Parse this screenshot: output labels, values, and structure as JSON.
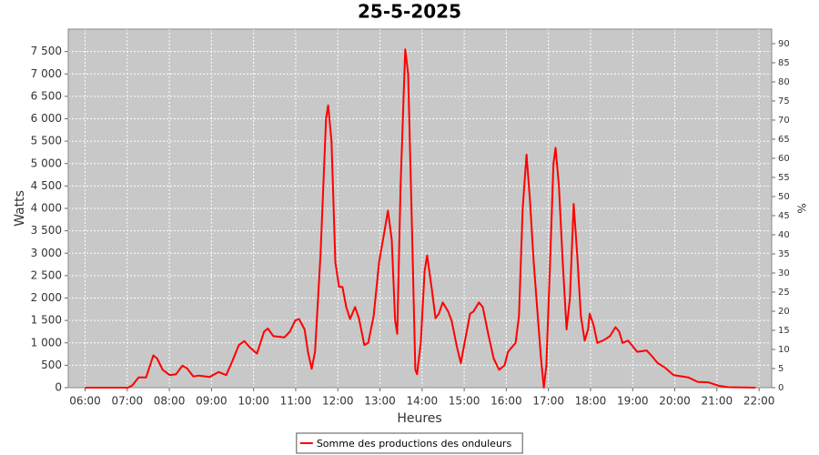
{
  "chart_data": {
    "type": "line",
    "title": "25-5-2025",
    "x_label": "Heures",
    "y_label": "Watts",
    "y2_label": "%",
    "x": [
      6.0,
      7.02,
      7.12,
      7.27,
      7.45,
      7.62,
      7.71,
      7.84,
      8.01,
      8.16,
      8.31,
      8.42,
      8.57,
      8.7,
      8.96,
      9.17,
      9.35,
      9.5,
      9.65,
      9.78,
      9.91,
      10.08,
      10.25,
      10.34,
      10.47,
      10.73,
      10.86,
      10.99,
      11.08,
      11.21,
      11.29,
      11.38,
      11.46,
      11.59,
      11.72,
      11.77,
      11.85,
      11.94,
      12.03,
      12.11,
      12.2,
      12.29,
      12.41,
      12.5,
      12.63,
      12.72,
      12.85,
      12.98,
      13.11,
      13.19,
      13.28,
      13.36,
      13.41,
      13.49,
      13.6,
      13.67,
      13.75,
      13.84,
      13.88,
      13.97,
      14.06,
      14.12,
      14.23,
      14.32,
      14.4,
      14.49,
      14.62,
      14.7,
      14.83,
      14.92,
      15.05,
      15.14,
      15.22,
      15.35,
      15.44,
      15.57,
      15.7,
      15.83,
      15.96,
      16.04,
      16.22,
      16.3,
      16.39,
      16.48,
      16.56,
      16.65,
      16.73,
      16.82,
      16.89,
      16.95,
      17.04,
      17.12,
      17.17,
      17.25,
      17.34,
      17.43,
      17.51,
      17.6,
      17.68,
      17.77,
      17.86,
      17.94,
      17.98,
      18.07,
      18.16,
      18.29,
      18.38,
      18.46,
      18.59,
      18.68,
      18.76,
      18.89,
      19.02,
      19.11,
      19.33,
      19.46,
      19.59,
      19.76,
      19.97,
      20.32,
      20.54,
      20.79,
      21.05,
      21.27,
      21.92
    ],
    "series": [
      {
        "name": "Somme des productions des onduleurs",
        "color": "#ff0000",
        "values": [
          0,
          0,
          50,
          230,
          230,
          720,
          650,
          400,
          280,
          300,
          490,
          430,
          250,
          270,
          240,
          350,
          280,
          600,
          950,
          1040,
          900,
          760,
          1250,
          1320,
          1150,
          1120,
          1250,
          1500,
          1530,
          1300,
          800,
          420,
          800,
          3000,
          6000,
          6300,
          5500,
          2800,
          2250,
          2250,
          1800,
          1530,
          1800,
          1550,
          950,
          1000,
          1600,
          2800,
          3500,
          3950,
          3300,
          1500,
          1200,
          4500,
          7550,
          7000,
          4000,
          400,
          300,
          1000,
          2600,
          2950,
          2200,
          1550,
          1650,
          1900,
          1700,
          1500,
          900,
          550,
          1200,
          1650,
          1700,
          1900,
          1800,
          1200,
          650,
          400,
          500,
          800,
          1000,
          1600,
          4000,
          5200,
          4200,
          2800,
          1800,
          700,
          0,
          500,
          2800,
          5000,
          5350,
          4500,
          2800,
          1300,
          2000,
          4100,
          3000,
          1600,
          1050,
          1300,
          1650,
          1400,
          1000,
          1050,
          1100,
          1150,
          1350,
          1250,
          1000,
          1050,
          900,
          800,
          830,
          700,
          550,
          450,
          280,
          230,
          130,
          120,
          40,
          10,
          0
        ]
      }
    ],
    "xlim": [
      5.6,
      22.3
    ],
    "xticks": [
      {
        "value": 6,
        "label": "06:00"
      },
      {
        "value": 7,
        "label": "07:00"
      },
      {
        "value": 8,
        "label": "08:00"
      },
      {
        "value": 9,
        "label": "09:00"
      },
      {
        "value": 10,
        "label": "10:00"
      },
      {
        "value": 11,
        "label": "11:00"
      },
      {
        "value": 12,
        "label": "12:00"
      },
      {
        "value": 13,
        "label": "13:00"
      },
      {
        "value": 14,
        "label": "14:00"
      },
      {
        "value": 15,
        "label": "15:00"
      },
      {
        "value": 16,
        "label": "16:00"
      },
      {
        "value": 17,
        "label": "17:00"
      },
      {
        "value": 18,
        "label": "18:00"
      },
      {
        "value": 19,
        "label": "19:00"
      },
      {
        "value": 20,
        "label": "20:00"
      },
      {
        "value": 21,
        "label": "21:00"
      },
      {
        "value": 22,
        "label": "22:00"
      }
    ],
    "ylim": [
      0,
      8000
    ],
    "yticks": [
      0,
      500,
      {
        "value": 1000,
        "label": "1 000"
      },
      {
        "value": 1500,
        "label": "1 500"
      },
      {
        "value": 2000,
        "label": "2 000"
      },
      {
        "value": 2500,
        "label": "2 500"
      },
      {
        "value": 3000,
        "label": "3 000"
      },
      {
        "value": 3500,
        "label": "3 500"
      },
      {
        "value": 4000,
        "label": "4 000"
      },
      {
        "value": 4500,
        "label": "4 500"
      },
      {
        "value": 5000,
        "label": "5 000"
      },
      {
        "value": 5500,
        "label": "5 500"
      },
      {
        "value": 6000,
        "label": "6 000"
      },
      {
        "value": 6500,
        "label": "6 500"
      },
      {
        "value": 7000,
        "label": "7 000"
      },
      {
        "value": 7500,
        "label": "7 500"
      }
    ],
    "y2lim": [
      0,
      93.8
    ],
    "y2ticks": [
      0,
      5,
      10,
      15,
      20,
      25,
      30,
      35,
      40,
      45,
      50,
      55,
      60,
      65,
      70,
      75,
      80,
      85,
      90
    ],
    "grid": true,
    "legend": "bottom"
  }
}
